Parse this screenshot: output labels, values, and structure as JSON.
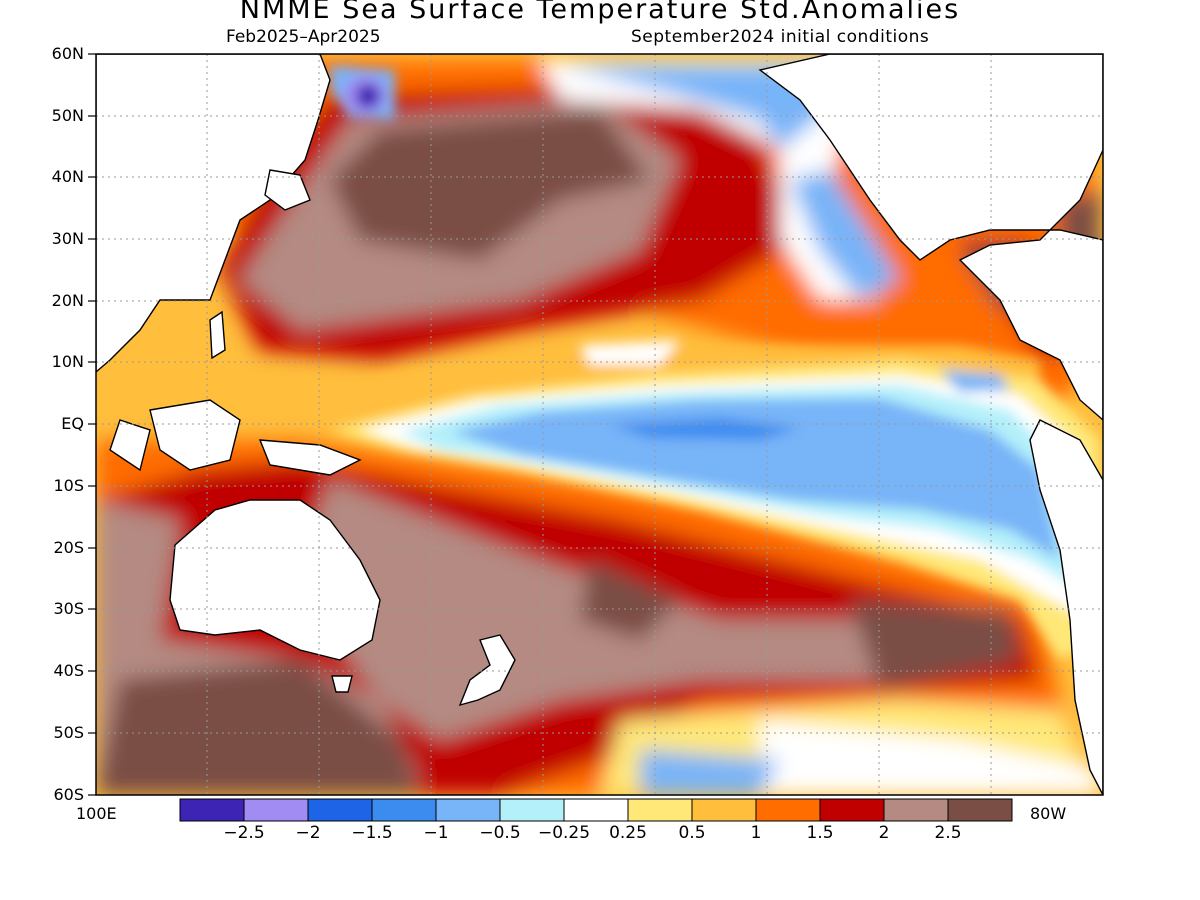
{
  "title": "NMME Sea Surface Temperature Std.Anomalies",
  "subtitle_left": "Feb2025–Apr2025",
  "subtitle_right": "September2024 initial conditions",
  "lat_labels": [
    "60N",
    "50N",
    "40N",
    "30N",
    "20N",
    "10N",
    "EQ",
    "10S",
    "20S",
    "30S",
    "40S",
    "50S",
    "60S"
  ],
  "lon_left": "100E",
  "lon_right": "80W",
  "colorbar": {
    "colors": [
      "#3e24b4",
      "#a08cf2",
      "#1e64e6",
      "#3c8cf0",
      "#78b4f8",
      "#b4f0fa",
      "#ffffff",
      "#ffe878",
      "#ffbe3c",
      "#ff6c00",
      "#c00000",
      "#b48a82",
      "#7a4e44"
    ],
    "labels": [
      "−2.5",
      "−2",
      "−1.5",
      "−1",
      "−0.5",
      "−0.25",
      "0.25",
      "0.5",
      "1",
      "1.5",
      "2",
      "2.5"
    ]
  },
  "map": {
    "lat_range": [
      "60S",
      "60N"
    ],
    "lon_range": [
      "100E",
      "80W"
    ]
  }
}
